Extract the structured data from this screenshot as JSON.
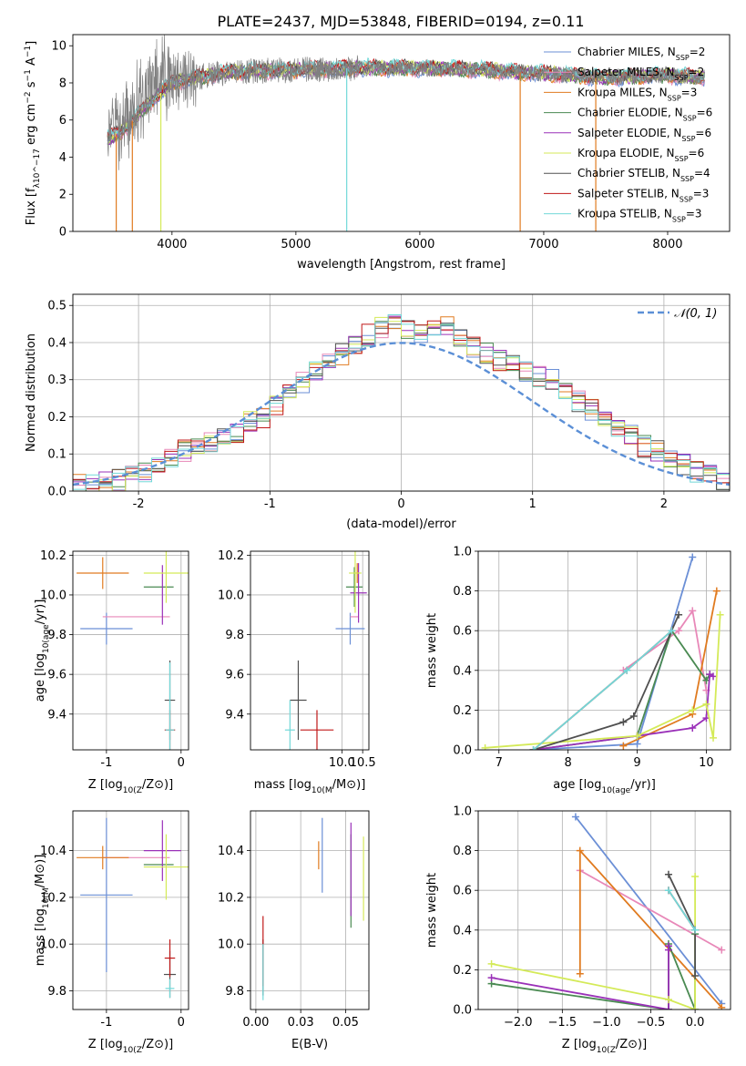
{
  "figure_title": "PLATE=2437, MJD=53848, FIBERID=0194, z=0.11",
  "colors": {
    "chabrier_miles": "#6b8fd6",
    "salpeter_miles": "#e888b8",
    "kroupa_miles": "#e07b20",
    "chabrier_elodie": "#4a8a52",
    "salpeter_elodie": "#9a30b8",
    "kroupa_elodie": "#d4ea58",
    "chabrier_stelib": "#505050",
    "salpeter_stelib": "#c01818",
    "kroupa_stelib": "#72d8d8",
    "data": "#808080",
    "normal": "#5b8fd6"
  },
  "chart_data": [
    {
      "id": "spectrum",
      "type": "line",
      "xlabel": "wavelength [Angstrom, rest frame]",
      "ylabel": "Flux [f_λ10^-17 erg cm^-2 s^-1 A^-1]",
      "xlim": [
        3200,
        8500
      ],
      "ylim": [
        0,
        10.6
      ],
      "xticks": [
        4000,
        5000,
        6000,
        7000,
        8000
      ],
      "yticks": [
        0,
        2,
        4,
        6,
        8,
        10
      ],
      "legend": "top-right",
      "series": [
        {
          "name": "Chabrier MILES, N_SSP=2",
          "color": "#6b8fd6"
        },
        {
          "name": "Salpeter MILES, N_SSP=2",
          "color": "#e888b8"
        },
        {
          "name": "Kroupa MILES, N_SSP=3",
          "color": "#e07b20"
        },
        {
          "name": "Chabrier ELODIE, N_SSP=6",
          "color": "#4a8a52"
        },
        {
          "name": "Salpeter ELODIE, N_SSP=6",
          "color": "#9a30b8"
        },
        {
          "name": "Kroupa ELODIE, N_SSP=6",
          "color": "#d4ea58"
        },
        {
          "name": "Chabrier STELIB, N_SSP=4",
          "color": "#505050"
        },
        {
          "name": "Salpeter STELIB, N_SSP=3",
          "color": "#c01818"
        },
        {
          "name": "Kroupa STELIB, N_SSP=3",
          "color": "#72d8d8"
        }
      ],
      "continuum": {
        "x": [
          3480,
          3600,
          3800,
          4000,
          4200,
          4500,
          5000,
          5500,
          6000,
          6500,
          7000,
          7500,
          8000,
          8300
        ],
        "y": [
          5.0,
          5.4,
          6.8,
          8.0,
          8.3,
          8.6,
          8.7,
          8.8,
          8.8,
          8.7,
          8.5,
          8.3,
          8.4,
          8.3
        ]
      },
      "dropouts": [
        {
          "x": 3550,
          "color": "#e07b20"
        },
        {
          "x": 3680,
          "color": "#e07b20"
        },
        {
          "x": 3910,
          "color": "#d4ea58"
        },
        {
          "x": 5410,
          "color": "#72d8d8"
        },
        {
          "x": 6810,
          "color": "#e07b20"
        },
        {
          "x": 7420,
          "color": "#e07b20"
        }
      ]
    },
    {
      "id": "residuals",
      "type": "line",
      "xlabel": "(data-model)/error",
      "ylabel": "Normed distribution",
      "xlim": [
        -2.5,
        2.5
      ],
      "ylim": [
        0,
        0.53
      ],
      "xticks": [
        -2,
        -1,
        0,
        1,
        2
      ],
      "yticks": [
        0.0,
        0.1,
        0.2,
        0.3,
        0.4,
        0.5
      ],
      "grid": true,
      "legend": "top-right",
      "legend_label": "𝒩(0, 1)",
      "bin_width": 0.1,
      "bin_start": -2.5,
      "histogram_base": [
        0.02,
        0.02,
        0.03,
        0.03,
        0.04,
        0.05,
        0.06,
        0.09,
        0.11,
        0.12,
        0.13,
        0.15,
        0.16,
        0.19,
        0.2,
        0.23,
        0.26,
        0.29,
        0.32,
        0.35,
        0.37,
        0.4,
        0.42,
        0.44,
        0.45,
        0.44,
        0.43,
        0.44,
        0.44,
        0.42,
        0.39,
        0.37,
        0.35,
        0.34,
        0.32,
        0.31,
        0.3,
        0.26,
        0.24,
        0.22,
        0.2,
        0.17,
        0.15,
        0.12,
        0.11,
        0.09,
        0.07,
        0.05,
        0.04,
        0.03
      ],
      "normal_curve": "N(0,1)"
    },
    {
      "id": "age_vs_Z",
      "type": "scatter",
      "xlabel": "Z [log10(Z/Z⊙)]",
      "ylabel": "age  [log10(age/yr)]",
      "xlim": [
        -1.45,
        0.1
      ],
      "ylim": [
        9.22,
        10.22
      ],
      "xticks": [
        -1,
        0
      ],
      "yticks": [
        9.4,
        9.6,
        9.8,
        10.0,
        10.2
      ],
      "grid": true,
      "points": [
        {
          "x": -1.0,
          "y": 9.83,
          "xerr": 0.35,
          "yerr": 0.08,
          "color": "#6b8fd6"
        },
        {
          "x": -0.6,
          "y": 9.89,
          "xerr": 0.45,
          "yerr": 0.0,
          "color": "#e888b8"
        },
        {
          "x": -1.05,
          "y": 10.11,
          "xerr": 0.35,
          "yerr": 0.08,
          "color": "#e07b20"
        },
        {
          "x": -0.3,
          "y": 10.04,
          "xerr": 0.2,
          "yerr": 0.0,
          "color": "#4a8a52"
        },
        {
          "x": -0.25,
          "y": 10.0,
          "xerr": 0.0,
          "yerr": 0.15,
          "color": "#9a30b8"
        },
        {
          "x": -0.2,
          "y": 10.11,
          "xerr": 0.3,
          "yerr": 0.15,
          "color": "#d4ea58"
        },
        {
          "x": -0.15,
          "y": 9.47,
          "xerr": 0.07,
          "yerr": 0.2,
          "color": "#505050"
        },
        {
          "x": -0.15,
          "y": 9.32,
          "xerr": 0.07,
          "yerr": 0.1,
          "color": "#c01818"
        },
        {
          "x": -0.15,
          "y": 9.32,
          "xerr": 0.06,
          "yerr": 0.34,
          "color": "#72d8d8"
        }
      ]
    },
    {
      "id": "age_vs_mass",
      "type": "scatter",
      "xlabel": "mass [log10(M/M⊙)]",
      "ylabel": "",
      "xlim": [
        7.8,
        10.65
      ],
      "ylim": [
        9.22,
        10.22
      ],
      "xticks": [
        10.0,
        10.5
      ],
      "yticks": [
        9.4,
        9.6,
        9.8,
        10.0,
        10.2
      ],
      "grid": true,
      "points": [
        {
          "x": 10.2,
          "y": 9.83,
          "xerr": 0.35,
          "yerr": 0.08,
          "color": "#6b8fd6"
        },
        {
          "x": 10.3,
          "y": 9.89,
          "xerr": 0.1,
          "yerr": 0.0,
          "color": "#e888b8"
        },
        {
          "x": 10.37,
          "y": 10.11,
          "xerr": 0.05,
          "yerr": 0.05,
          "color": "#e07b20"
        },
        {
          "x": 10.3,
          "y": 10.04,
          "xerr": 0.2,
          "yerr": 0.1,
          "color": "#4a8a52"
        },
        {
          "x": 10.4,
          "y": 10.01,
          "xerr": 0.2,
          "yerr": 0.15,
          "color": "#9a30b8"
        },
        {
          "x": 10.32,
          "y": 10.11,
          "xerr": 0.15,
          "yerr": 0.2,
          "color": "#d4ea58"
        },
        {
          "x": 8.95,
          "y": 9.47,
          "xerr": 0.2,
          "yerr": 0.2,
          "color": "#505050"
        },
        {
          "x": 9.4,
          "y": 9.32,
          "xerr": 0.4,
          "yerr": 0.1,
          "color": "#c01818"
        },
        {
          "x": 8.75,
          "y": 9.32,
          "xerr": 0.12,
          "yerr": 0.15,
          "color": "#72d8d8"
        }
      ]
    },
    {
      "id": "weight_vs_age",
      "type": "line",
      "xlabel": "age  [log10(age/yr)]",
      "ylabel": "mass weight",
      "xlim": [
        6.7,
        10.35
      ],
      "ylim": [
        0,
        1
      ],
      "xticks": [
        7,
        8,
        9,
        10
      ],
      "yticks": [
        0.0,
        0.2,
        0.4,
        0.6,
        0.8,
        1.0
      ],
      "grid": true,
      "series": [
        {
          "color": "#6b8fd6",
          "x": [
            7.5,
            9.0,
            9.8
          ],
          "y": [
            0.0,
            0.03,
            0.97
          ]
        },
        {
          "color": "#e888b8",
          "x": [
            8.8,
            9.6,
            9.8,
            10.0
          ],
          "y": [
            0.4,
            0.6,
            0.7,
            0.3
          ]
        },
        {
          "color": "#e07b20",
          "x": [
            8.8,
            9.8,
            10.15
          ],
          "y": [
            0.02,
            0.18,
            0.8
          ]
        },
        {
          "color": "#4a8a52",
          "x": [
            7.5,
            9.0,
            9.5,
            10.0,
            10.05
          ],
          "y": [
            0.0,
            0.07,
            0.6,
            0.35,
            0.38
          ]
        },
        {
          "color": "#9a30b8",
          "x": [
            7.5,
            9.0,
            9.8,
            10.0,
            10.05,
            10.1
          ],
          "y": [
            0.0,
            0.07,
            0.11,
            0.16,
            0.38,
            0.37
          ]
        },
        {
          "color": "#d4ea58",
          "x": [
            6.8,
            9.0,
            9.8,
            10.0,
            10.1,
            10.2
          ],
          "y": [
            0.01,
            0.07,
            0.2,
            0.23,
            0.06,
            0.68
          ]
        },
        {
          "color": "#505050",
          "x": [
            7.5,
            8.8,
            8.95,
            9.6
          ],
          "y": [
            0.0,
            0.14,
            0.17,
            0.68
          ]
        },
        {
          "color": "#c01818",
          "x": [
            7.5,
            8.85,
            9.5
          ],
          "y": [
            0.0,
            0.4,
            0.6
          ]
        },
        {
          "color": "#72d8d8",
          "x": [
            7.5,
            8.85,
            9.5
          ],
          "y": [
            0.0,
            0.4,
            0.6
          ]
        }
      ]
    },
    {
      "id": "mass_vs_Z",
      "type": "scatter",
      "xlabel": "Z [log10(Z/Z⊙)]",
      "ylabel": "mass [log10(M/M⊙)]",
      "xlim": [
        -1.45,
        0.1
      ],
      "ylim": [
        9.72,
        10.57
      ],
      "xticks": [
        -1,
        0
      ],
      "yticks": [
        9.8,
        10.0,
        10.2,
        10.4
      ],
      "grid": true,
      "points": [
        {
          "x": -1.0,
          "y": 10.21,
          "xerr": 0.35,
          "yerr": 0.33,
          "color": "#6b8fd6"
        },
        {
          "x": -0.6,
          "y": 10.37,
          "xerr": 0.45,
          "yerr": 0.0,
          "color": "#e888b8"
        },
        {
          "x": -1.05,
          "y": 10.37,
          "xerr": 0.35,
          "yerr": 0.05,
          "color": "#e07b20"
        },
        {
          "x": -0.3,
          "y": 10.34,
          "xerr": 0.2,
          "yerr": 0.0,
          "color": "#4a8a52"
        },
        {
          "x": -0.25,
          "y": 10.4,
          "xerr": 0.25,
          "yerr": 0.13,
          "color": "#9a30b8"
        },
        {
          "x": -0.2,
          "y": 10.33,
          "xerr": 0.3,
          "yerr": 0.14,
          "color": "#d4ea58"
        },
        {
          "x": -0.15,
          "y": 9.87,
          "xerr": 0.08,
          "yerr": 0.1,
          "color": "#505050"
        },
        {
          "x": -0.15,
          "y": 9.94,
          "xerr": 0.07,
          "yerr": 0.08,
          "color": "#c01818"
        },
        {
          "x": -0.15,
          "y": 9.81,
          "xerr": 0.06,
          "yerr": 0.04,
          "color": "#72d8d8"
        }
      ]
    },
    {
      "id": "mass_vs_EBV",
      "type": "scatter",
      "xlabel": "E(B-V)",
      "ylabel": "",
      "xlim": [
        -0.003,
        0.063
      ],
      "ylim": [
        9.72,
        10.57
      ],
      "xticks": [
        0.0,
        0.025,
        0.05
      ],
      "yticks": [
        9.8,
        10.0,
        10.2,
        10.4
      ],
      "grid": true,
      "points": [
        {
          "x": 0.037,
          "y": 10.38,
          "xerr": 0.0,
          "yerr": 0.16,
          "color": "#6b8fd6"
        },
        {
          "x": 0.035,
          "y": 10.38,
          "xerr": 0.0,
          "yerr": 0.06,
          "color": "#e07b20"
        },
        {
          "x": 0.053,
          "y": 10.27,
          "xerr": 0.0,
          "yerr": 0.2,
          "color": "#4a8a52"
        },
        {
          "x": 0.053,
          "y": 10.32,
          "xerr": 0.0,
          "yerr": 0.2,
          "color": "#9a30b8"
        },
        {
          "x": 0.06,
          "y": 10.28,
          "xerr": 0.0,
          "yerr": 0.18,
          "color": "#d4ea58"
        },
        {
          "x": 0.004,
          "y": 9.9,
          "xerr": 0.0,
          "yerr": 0.12,
          "color": "#505050"
        },
        {
          "x": 0.004,
          "y": 9.97,
          "xerr": 0.0,
          "yerr": 0.15,
          "color": "#c01818"
        },
        {
          "x": 0.004,
          "y": 9.88,
          "xerr": 0.0,
          "yerr": 0.12,
          "color": "#72d8d8"
        }
      ]
    },
    {
      "id": "weight_vs_Z",
      "type": "line",
      "xlabel": "Z [log10(Z/Z⊙)]",
      "ylabel": "mass weight",
      "xlim": [
        -2.45,
        0.4
      ],
      "ylim": [
        0,
        1
      ],
      "xticks": [
        -2.0,
        -1.5,
        -1.0,
        -0.5,
        0.0
      ],
      "yticks": [
        0.0,
        0.2,
        0.4,
        0.6,
        0.8,
        1.0
      ],
      "grid": true,
      "series": [
        {
          "color": "#6b8fd6",
          "x": [
            -1.35,
            0.3
          ],
          "y": [
            0.97,
            0.03
          ]
        },
        {
          "color": "#e888b8",
          "x": [
            -1.3,
            0.3
          ],
          "y": [
            0.7,
            0.3
          ]
        },
        {
          "color": "#e07b20",
          "x": [
            -1.3,
            -1.3,
            0.3
          ],
          "y": [
            0.18,
            0.8,
            0.01
          ]
        },
        {
          "color": "#4a8a52",
          "x": [
            -2.3,
            -0.3,
            -0.3,
            0.0,
            0.0
          ],
          "y": [
            0.13,
            0.0,
            0.33,
            0.0,
            0.38
          ]
        },
        {
          "color": "#9a30b8",
          "x": [
            -2.3,
            -0.3,
            -0.3,
            -0.3
          ],
          "y": [
            0.16,
            0.0,
            0.3,
            0.32
          ]
        },
        {
          "color": "#d4ea58",
          "x": [
            -2.3,
            -0.3,
            0.0,
            0.0
          ],
          "y": [
            0.23,
            0.05,
            0.0,
            0.67
          ]
        },
        {
          "color": "#505050",
          "x": [
            -0.3,
            0.0,
            0.0
          ],
          "y": [
            0.68,
            0.4,
            0.17
          ]
        },
        {
          "color": "#c01818",
          "x": [
            -0.3,
            0.0
          ],
          "y": [
            0.6,
            0.4
          ]
        },
        {
          "color": "#72d8d8",
          "x": [
            -0.3,
            0.0
          ],
          "y": [
            0.6,
            0.4
          ]
        }
      ]
    }
  ]
}
